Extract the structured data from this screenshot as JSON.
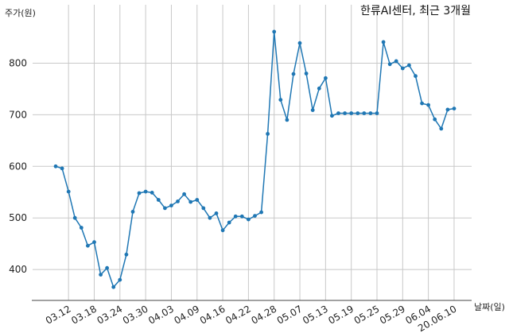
{
  "chart_data": {
    "type": "line",
    "title": "한류AI센터, 최근 3개월",
    "xlabel": "날짜(일)",
    "ylabel": "주가(원)",
    "ylim": [
      340,
      880
    ],
    "yticks": [
      400,
      500,
      600,
      700,
      800
    ],
    "grid": true,
    "line_color": "#1f77b4",
    "grid_color": "#c8c8c8",
    "xticks": [
      {
        "label": "03.12",
        "index": 2
      },
      {
        "label": "03.18",
        "index": 6
      },
      {
        "label": "03.24",
        "index": 10
      },
      {
        "label": "03.30",
        "index": 14
      },
      {
        "label": "04.03",
        "index": 18
      },
      {
        "label": "04.09",
        "index": 22
      },
      {
        "label": "04.16",
        "index": 26
      },
      {
        "label": "04.22",
        "index": 30
      },
      {
        "label": "04.28",
        "index": 34
      },
      {
        "label": "05.07",
        "index": 38
      },
      {
        "label": "05.13",
        "index": 42
      },
      {
        "label": "05.19",
        "index": 46
      },
      {
        "label": "05.25",
        "index": 50
      },
      {
        "label": "05.29",
        "index": 54
      },
      {
        "label": "06.04",
        "index": 58
      },
      {
        "label": "20.06.10",
        "index": 62
      }
    ],
    "series": [
      {
        "values": [
          600,
          596,
          551,
          500,
          481,
          446,
          453,
          390,
          403,
          366,
          380,
          429,
          512,
          548,
          551,
          549,
          535,
          519,
          524,
          532,
          546,
          531,
          535,
          519,
          500,
          509,
          476,
          491,
          503,
          503,
          497,
          504,
          511,
          663,
          861,
          729,
          690,
          779,
          839,
          780,
          709,
          751,
          771,
          698,
          703,
          703,
          703,
          703,
          703,
          703,
          703,
          841,
          798,
          804,
          790,
          796,
          775,
          722,
          719,
          691,
          673,
          710,
          712
        ]
      }
    ]
  }
}
